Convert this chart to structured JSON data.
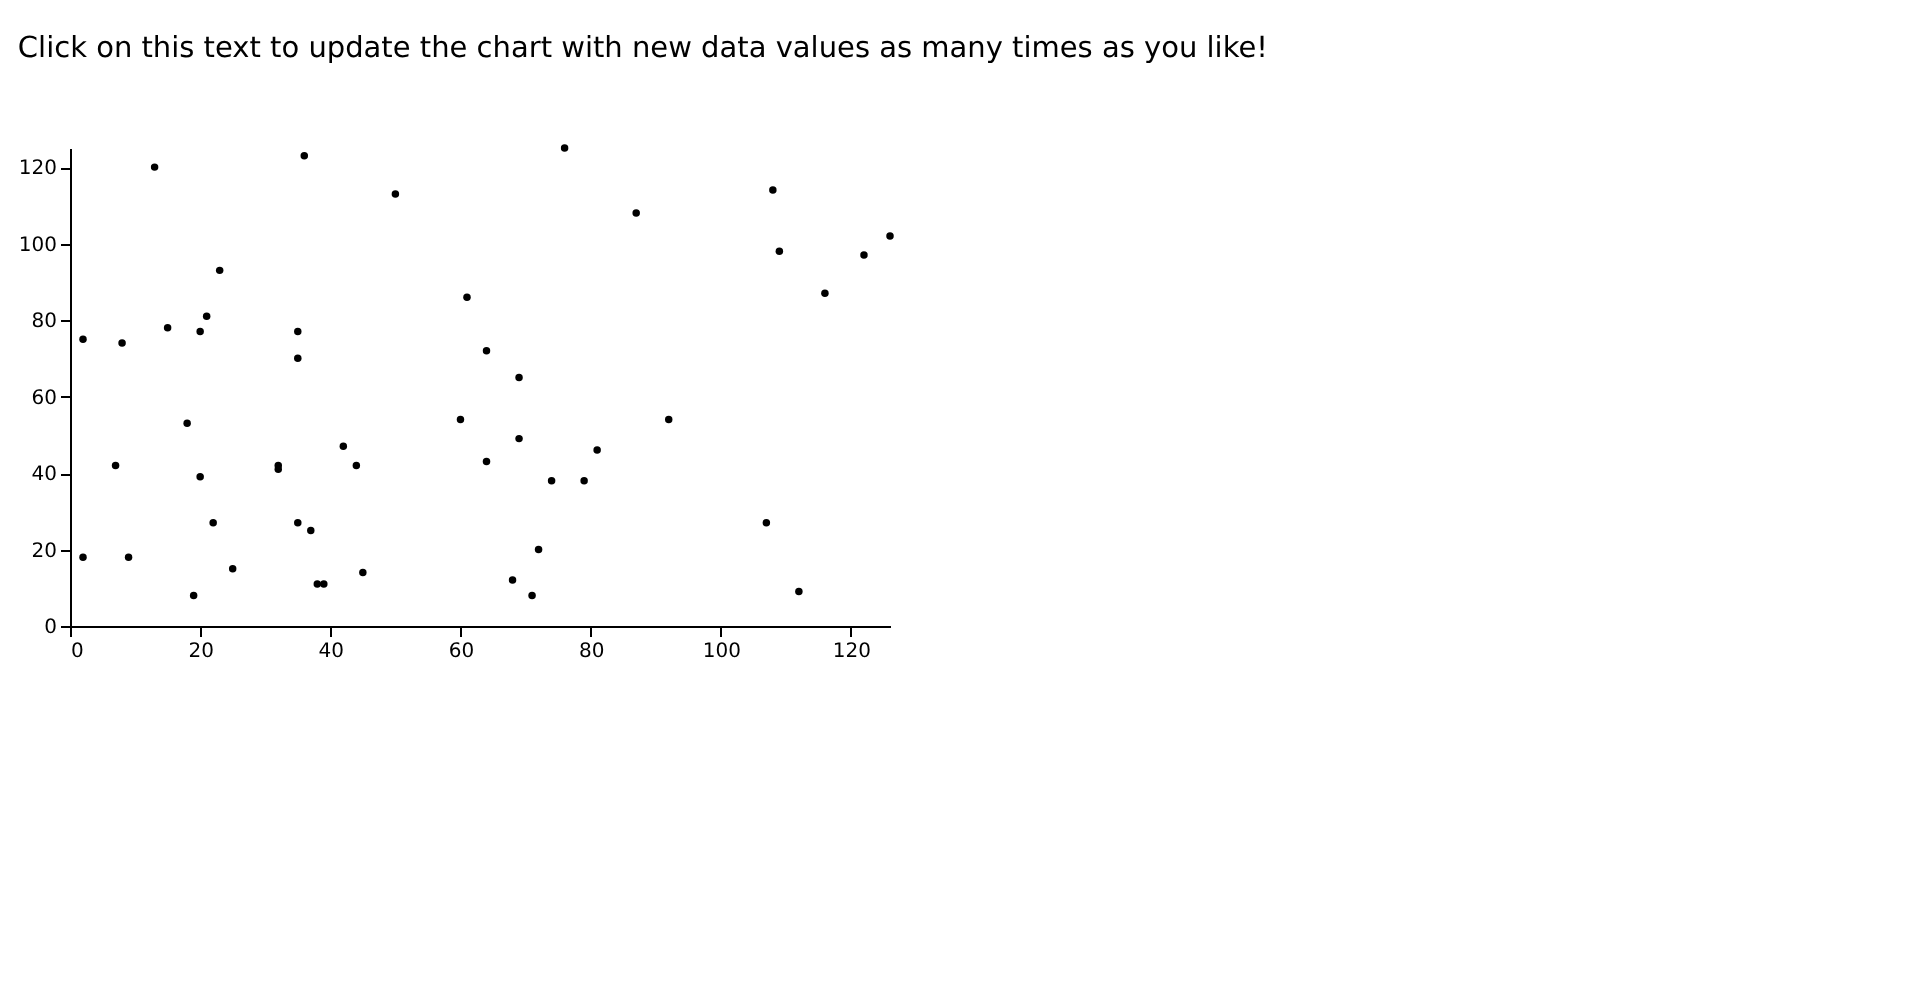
{
  "chart_data": {
    "type": "scatter",
    "title": "Click on this text to update the chart with new data values as many times as you like!",
    "x": [
      2,
      2,
      8,
      7,
      9,
      13,
      15,
      18,
      19,
      20,
      20,
      21,
      22,
      23,
      25,
      32,
      32,
      35,
      35,
      35,
      36,
      37,
      38,
      39,
      42,
      44,
      45,
      50,
      60,
      61,
      64,
      64,
      68,
      69,
      69,
      71,
      72,
      74,
      76,
      79,
      81,
      87,
      92,
      107,
      108,
      109,
      112,
      116,
      122,
      126
    ],
    "series": [
      {
        "color": "#000000",
        "values": [
          18,
          75,
          74,
          42,
          18,
          120,
          78,
          53,
          8,
          77,
          39,
          81,
          27,
          93,
          15,
          42,
          41,
          77,
          70,
          27,
          123,
          25,
          11,
          11,
          47,
          42,
          14,
          113,
          54,
          86,
          72,
          43,
          12,
          65,
          49,
          8,
          20,
          38,
          125,
          38,
          46,
          108,
          54,
          27,
          114,
          98,
          9,
          87,
          97,
          102
        ]
      }
    ],
    "xlim": [
      0,
      126
    ],
    "ylim": [
      0,
      125
    ],
    "xticks": [
      0,
      20,
      40,
      60,
      80,
      100,
      120
    ],
    "yticks": [
      0,
      20,
      40,
      60,
      80,
      100,
      120
    ],
    "grid": false,
    "marker": "circle"
  }
}
